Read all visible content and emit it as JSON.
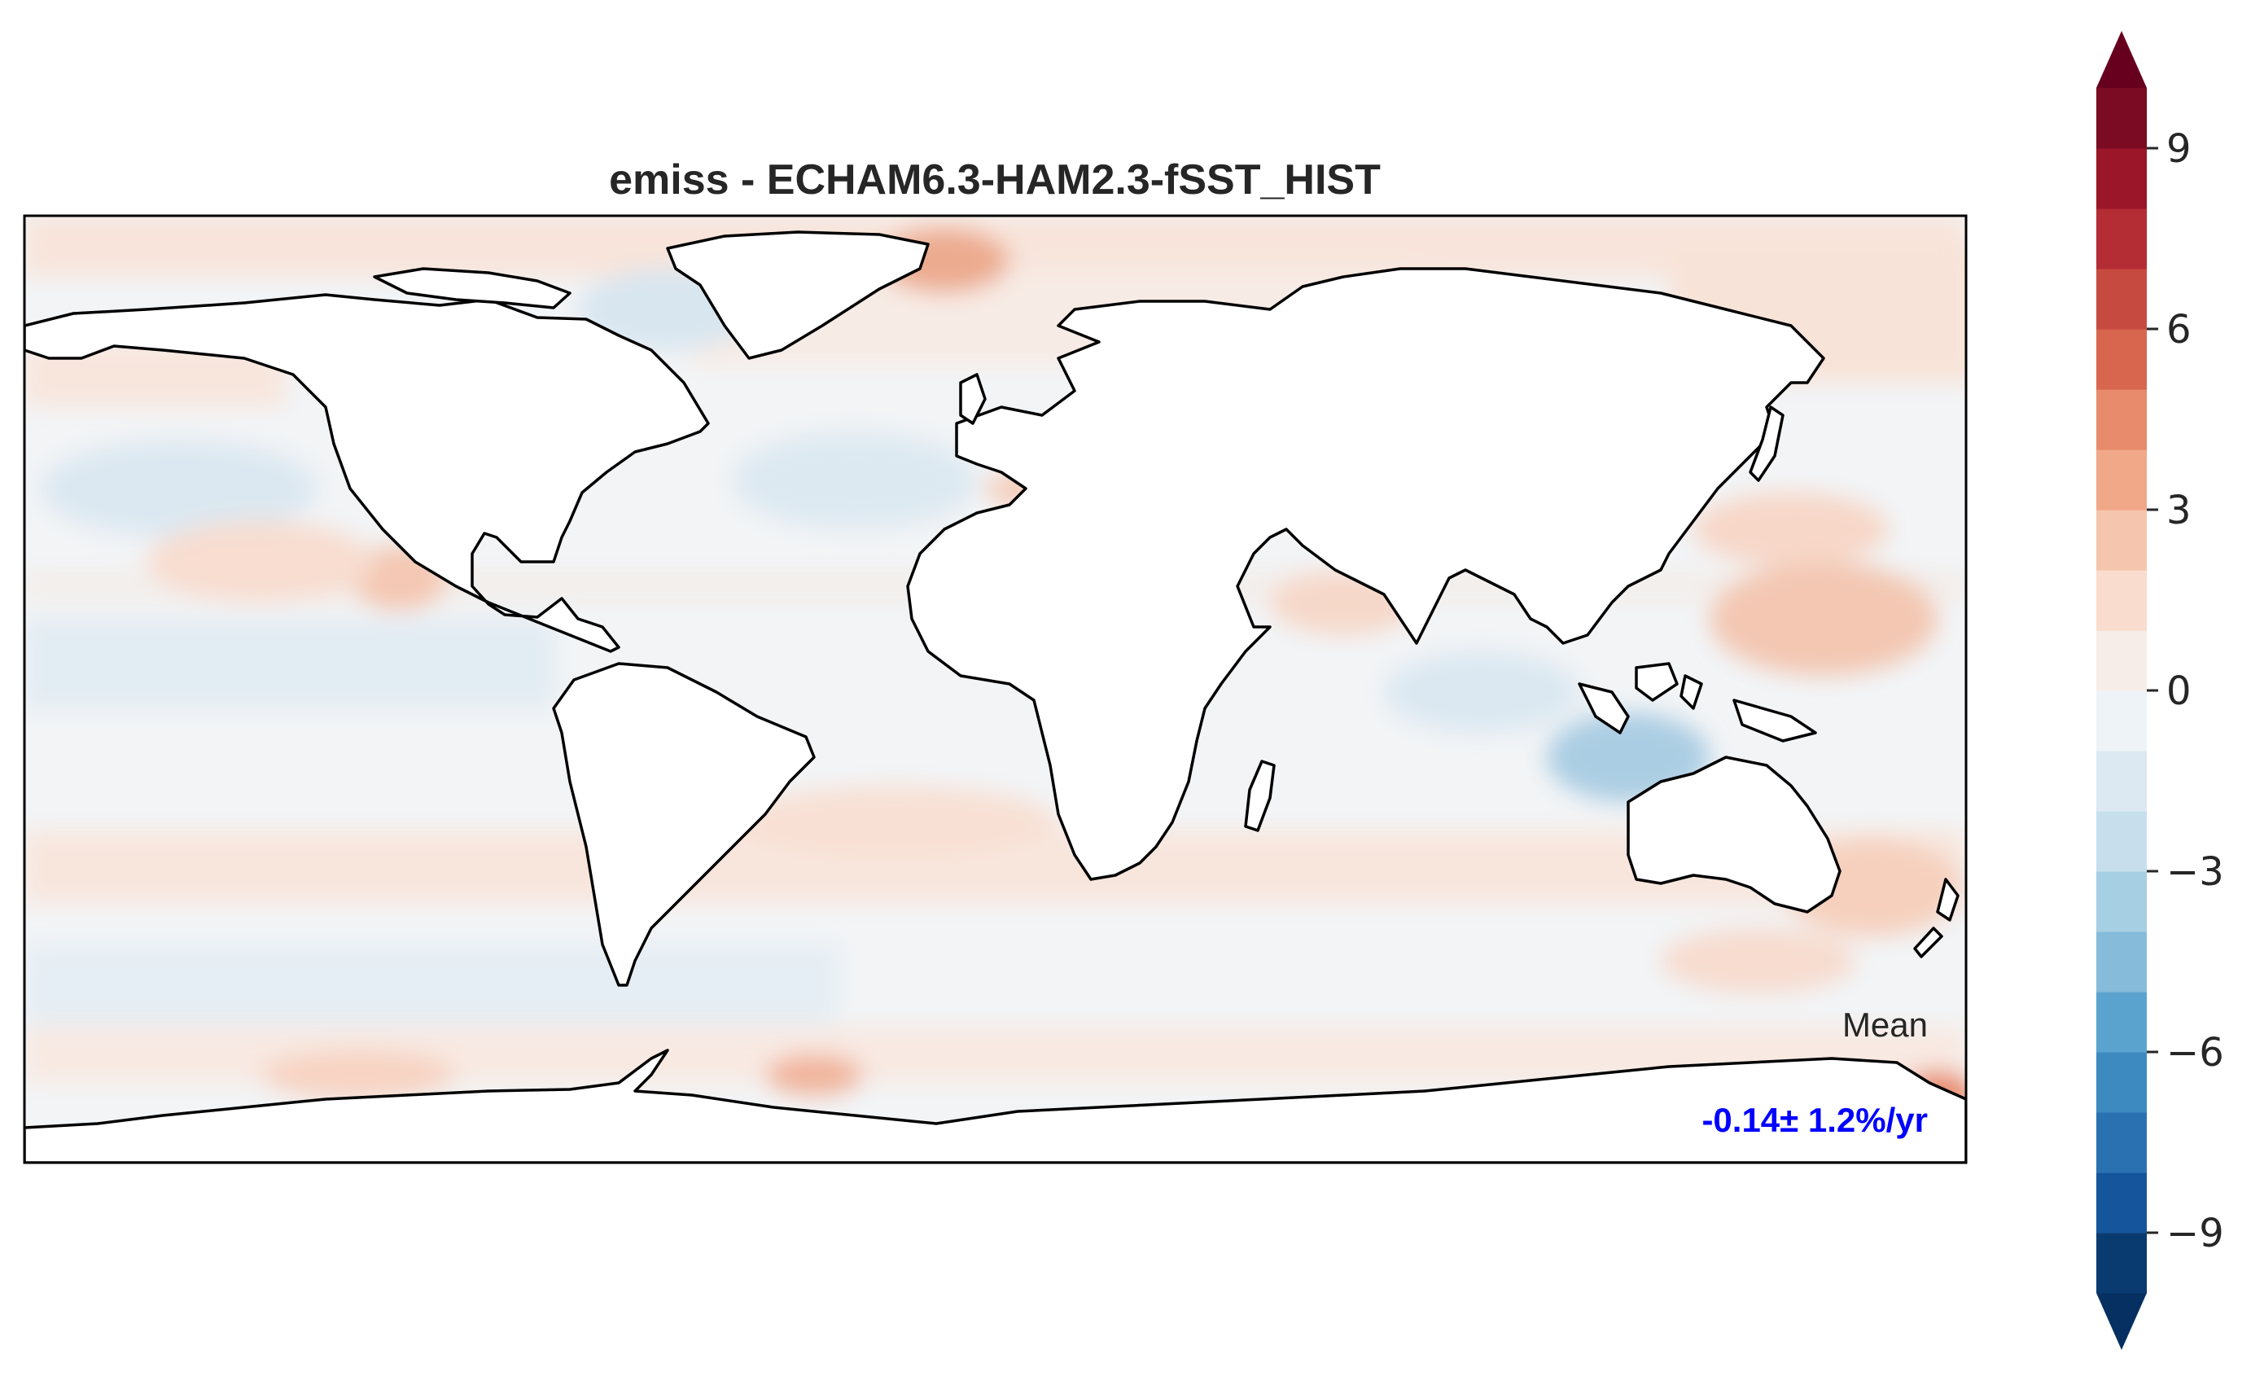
{
  "title": "emiss - ECHAM6.3-HAM2.3-fSST_HIST",
  "annotation": {
    "label": "Mean",
    "value": "-0.14± 1.2%/yr",
    "value_color": "#0000ff"
  },
  "chart_data": {
    "type": "heatmap",
    "title": "emiss - ECHAM6.3-HAM2.3-fSST_HIST",
    "projection": "PlateCarree",
    "extent": {
      "lon": [
        -180,
        180
      ],
      "lat": [
        -90,
        90
      ]
    },
    "land_mask": "white",
    "field_pattern": "near-zero trends over oceans; weak positive trends in mid-latitude bands, the North Pacific, North Atlantic near Greenland, Mediterranean and Southern Ocean edge; weak negative trends in the tropics and a stronger negative patch near the Indonesian seas / northwest Australia",
    "colorbar": {
      "levels": [
        -10,
        -9,
        -8,
        -7,
        -6,
        -5,
        -4,
        -3,
        -2,
        -1,
        0,
        1,
        2,
        3,
        4,
        5,
        6,
        7,
        8,
        9,
        10
      ],
      "colors": [
        "#0a3b70",
        "#14559b",
        "#2a71b2",
        "#3d8ac0",
        "#5ba3cf",
        "#86bbda",
        "#a7cfe4",
        "#c7dfed",
        "#dde9f2",
        "#eef3f7",
        "#f7ede8",
        "#fadcce",
        "#f6c5ad",
        "#f0a888",
        "#e78b6c",
        "#d8664f",
        "#c74a41",
        "#b42c34",
        "#9a1628",
        "#7a0b22"
      ],
      "under_color": "#053061",
      "over_color": "#67001f",
      "extend": "both",
      "ticks": [
        -9,
        -6,
        -3,
        0,
        3,
        6,
        9
      ],
      "tick_labels": [
        "−9",
        "−6",
        "−3",
        "0",
        "3",
        "6",
        "9"
      ]
    }
  }
}
